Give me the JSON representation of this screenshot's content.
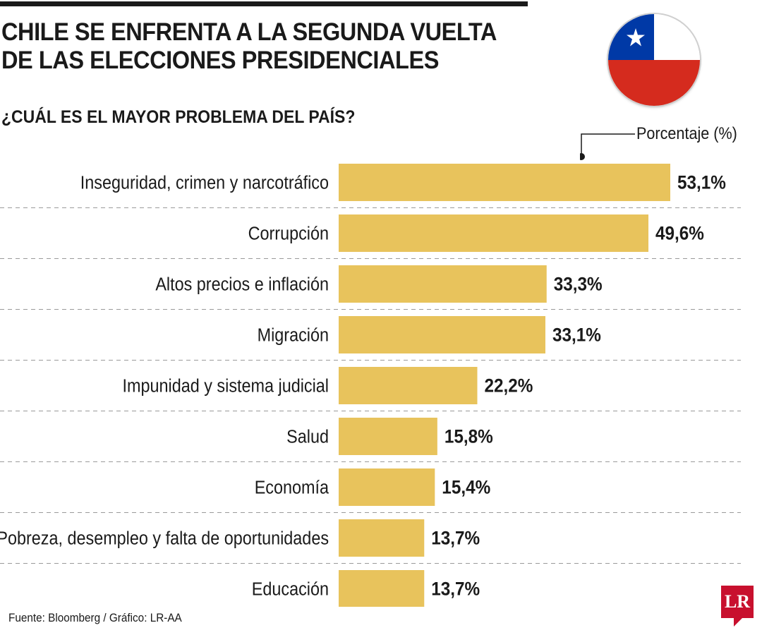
{
  "title": "CHILE SE ENFRENTA A LA SEGUNDA VUELTA\nDE LAS  ELECCIONES PRESIDENCIALES",
  "subtitle": "¿CUÁL ES EL MAYOR PROBLEMA DEL PAÍS?",
  "unit_label": "Porcentaje (%)",
  "source": "Fuente: Bloomberg / Gráfico: LR-AA",
  "logo_text": "LR",
  "colors": {
    "bar": "#e8c35c",
    "grid": "#9a9a9a",
    "text": "#1a1a1a",
    "logo": "#c8102e"
  },
  "chart_data": {
    "type": "bar",
    "orientation": "horizontal",
    "title": "¿CUÁL ES EL MAYOR PROBLEMA DEL PAÍS?",
    "xlabel": "Porcentaje (%)",
    "ylabel": "",
    "xlim": [
      0,
      53.1
    ],
    "grid": false,
    "categories": [
      "Inseguridad, crimen y narcotráfico",
      "Corrupción",
      "Altos precios e inflación",
      "Migración",
      "Impunidad y sistema judicial",
      "Salud",
      "Economía",
      "Pobreza, desempleo y falta de oportunidades",
      "Educación"
    ],
    "values": [
      53.1,
      49.6,
      33.3,
      33.1,
      22.2,
      15.8,
      15.4,
      13.7,
      13.7
    ],
    "value_labels": [
      "53,1%",
      "49,6%",
      "33,3%",
      "33,1%",
      "22,2%",
      "15,8%",
      "15,4%",
      "13,7%",
      "13,7%"
    ]
  }
}
